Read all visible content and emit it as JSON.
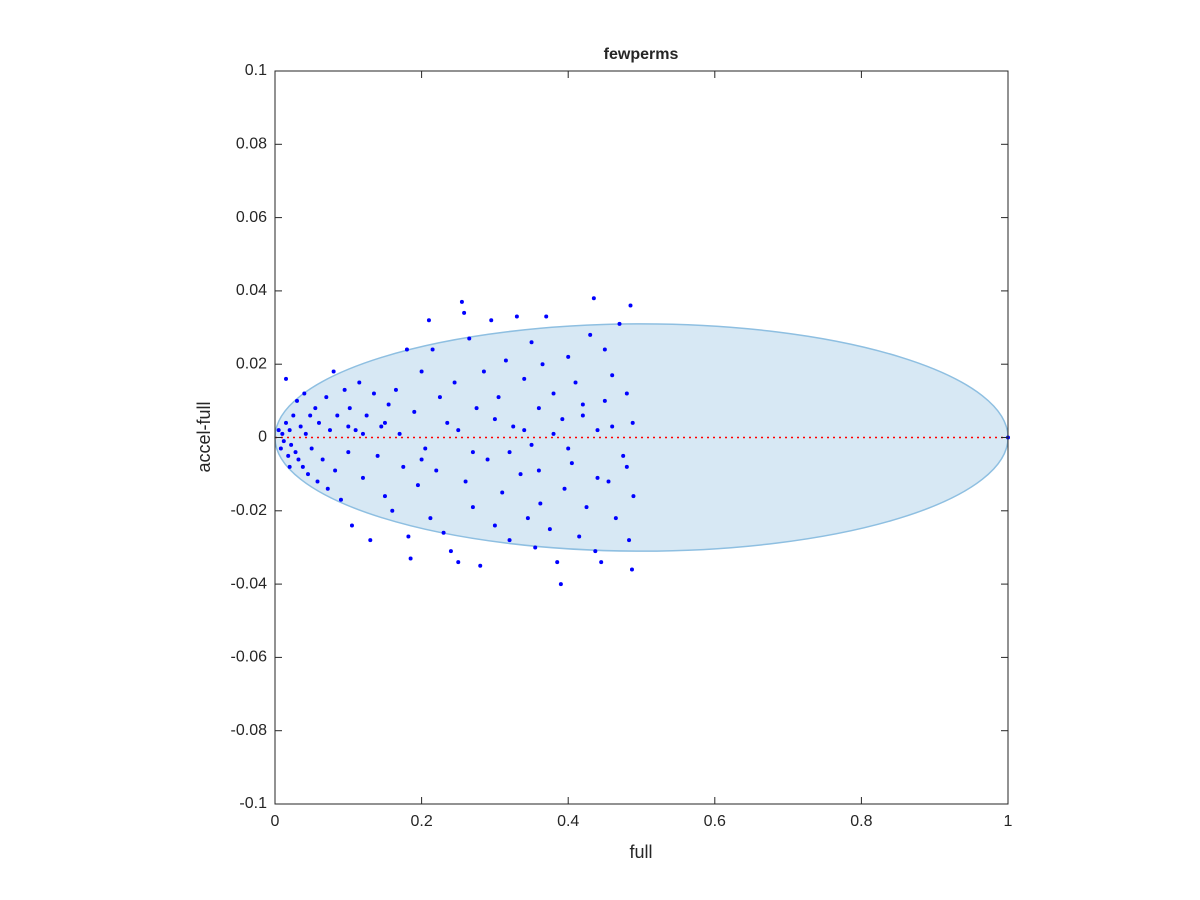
{
  "chart_data": {
    "type": "scatter",
    "title": "fewperms",
    "x_label": "full",
    "y_label": "accel-full",
    "color": "#0000ff",
    "x": [
      0.005,
      0.008,
      0.01,
      0.012,
      0.015,
      0.018,
      0.02,
      0.022,
      0.025,
      0.028,
      0.03,
      0.032,
      0.035,
      0.038,
      0.04,
      0.042,
      0.045,
      0.048,
      0.05,
      0.015,
      0.02,
      0.055,
      0.058,
      0.06,
      0.065,
      0.07,
      0.072,
      0.075,
      0.08,
      0.082,
      0.085,
      0.09,
      0.095,
      0.1,
      0.102,
      0.105,
      0.11,
      0.115,
      0.12,
      0.125,
      0.13,
      0.135,
      0.14,
      0.145,
      0.15,
      0.155,
      0.16,
      0.165,
      0.17,
      0.175,
      0.18,
      0.182,
      0.185,
      0.19,
      0.195,
      0.2,
      0.205,
      0.21,
      0.212,
      0.215,
      0.22,
      0.225,
      0.23,
      0.235,
      0.24,
      0.245,
      0.25,
      0.255,
      0.258,
      0.26,
      0.265,
      0.27,
      0.275,
      0.28,
      0.285,
      0.29,
      0.295,
      0.3,
      0.305,
      0.31,
      0.315,
      0.32,
      0.325,
      0.33,
      0.335,
      0.34,
      0.345,
      0.35,
      0.355,
      0.36,
      0.362,
      0.365,
      0.37,
      0.375,
      0.38,
      0.385,
      0.39,
      0.392,
      0.395,
      0.4,
      0.405,
      0.41,
      0.415,
      0.42,
      0.425,
      0.43,
      0.435,
      0.437,
      0.44,
      0.445,
      0.45,
      0.455,
      0.46,
      0.465,
      0.47,
      0.475,
      0.48,
      0.483,
      0.485,
      0.487,
      0.488,
      0.489,
      0.3,
      0.32,
      0.34,
      0.36,
      0.38,
      0.4,
      0.42,
      0.44,
      0.46,
      0.48,
      0.35,
      0.45,
      0.25,
      0.27,
      0.2,
      0.15,
      0.12,
      0.1,
      1
    ],
    "y": [
      0.002,
      -0.003,
      0.001,
      -0.001,
      0.004,
      -0.005,
      0.002,
      -0.002,
      0.006,
      -0.004,
      0.01,
      -0.006,
      0.003,
      -0.008,
      0.012,
      0.001,
      -0.01,
      0.006,
      -0.003,
      0.016,
      -0.008,
      0.008,
      -0.012,
      0.004,
      -0.006,
      0.011,
      -0.014,
      0.002,
      0.018,
      -0.009,
      0.006,
      -0.017,
      0.013,
      -0.004,
      0.008,
      -0.024,
      0.002,
      0.015,
      -0.011,
      0.006,
      -0.028,
      0.012,
      -0.005,
      0.003,
      -0.016,
      0.009,
      -0.02,
      0.013,
      0.001,
      -0.008,
      0.024,
      -0.027,
      -0.033,
      0.007,
      -0.013,
      0.018,
      -0.003,
      0.032,
      -0.022,
      0.024,
      -0.009,
      0.011,
      -0.026,
      0.004,
      -0.031,
      0.015,
      -0.034,
      0.037,
      0.034,
      -0.012,
      0.027,
      -0.019,
      0.008,
      -0.035,
      0.018,
      -0.006,
      0.032,
      -0.024,
      0.011,
      -0.015,
      0.021,
      -0.028,
      0.003,
      0.033,
      -0.01,
      0.016,
      -0.022,
      0.026,
      -0.03,
      0.008,
      -0.018,
      0.02,
      0.033,
      -0.025,
      0.012,
      -0.034,
      -0.04,
      0.005,
      -0.014,
      0.022,
      -0.007,
      0.015,
      -0.027,
      0.009,
      -0.019,
      0.028,
      0.038,
      -0.031,
      0.002,
      -0.034,
      0.024,
      -0.012,
      0.017,
      -0.022,
      0.031,
      -0.005,
      0.012,
      -0.028,
      0.036,
      -0.036,
      0.004,
      -0.016,
      0.005,
      -0.004,
      0.002,
      -0.009,
      0.001,
      -0.003,
      0.006,
      -0.011,
      0.003,
      -0.008,
      -0.002,
      0.01,
      0.002,
      -0.004,
      -0.006,
      0.004,
      0.001,
      0.003,
      0
    ],
    "ellipse": {
      "center": [
        0.5,
        0
      ],
      "radii": [
        0.5,
        0.031
      ],
      "color": "#d7e8f4"
    },
    "reference_line": {
      "y": 0,
      "color": "#ff0000"
    },
    "xlim": [
      0,
      1
    ],
    "xticks": [
      0,
      0.2,
      0.4,
      0.6,
      0.8,
      1
    ],
    "ylim": [
      -0.1,
      0.1
    ],
    "yticks": [
      -0.1,
      -0.08,
      -0.06,
      -0.04,
      -0.02,
      0,
      0.02,
      0.04,
      0.06,
      0.08,
      0.1
    ]
  }
}
